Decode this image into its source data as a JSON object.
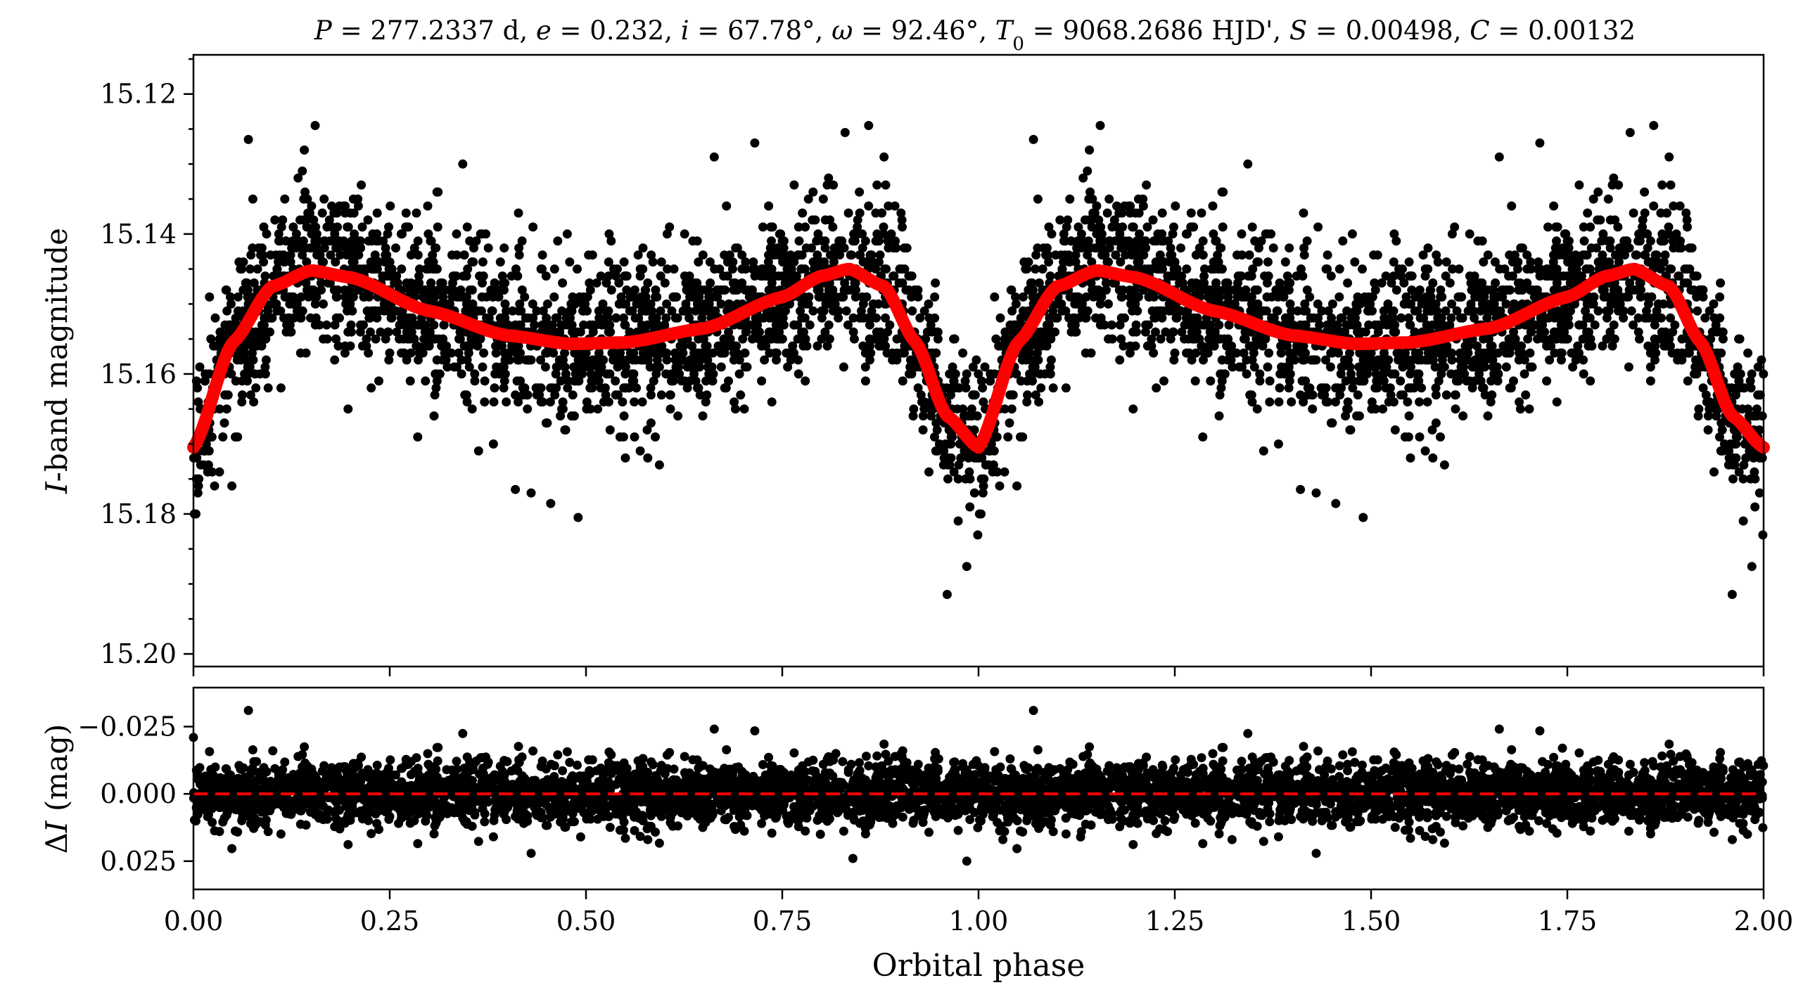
{
  "chart_data": [
    {
      "type": "scatter",
      "panel": "light-curve",
      "title": "P = 277.2337 d, e = 0.232, i = 67.78°, ω = 92.46°, T0 = 9068.2686 HJD', S = 0.00498, C = 0.00132",
      "title_parts": {
        "P_sym": "P",
        "P_val": " = 277.2337 d, ",
        "e_sym": "e",
        "e_val": " = 0.232, ",
        "i_sym": "i",
        "i_val": " = 67.78°, ",
        "w_sym": "ω",
        "w_val": " = 92.46°, ",
        "T_sym": "T",
        "T_sub": "0",
        "T_val": " = 9068.2686 HJD', ",
        "S_sym": "S",
        "S_val": " = 0.00498, ",
        "C_sym": "C",
        "C_val": " = 0.00132"
      },
      "xlabel": "Orbital phase",
      "ylabel_italic": "I",
      "ylabel_rest": "-band magnitude",
      "xlim": [
        0.0,
        2.0
      ],
      "ylim": [
        15.2018,
        15.1144
      ],
      "y_inverted": true,
      "yticks": [
        15.12,
        15.14,
        15.16,
        15.18,
        15.2
      ],
      "ytick_labels": [
        "15.12",
        "15.14",
        "15.16",
        "15.18",
        "15.20"
      ],
      "model_curve": {
        "color": "#ff0000",
        "phase": [
          0.0,
          0.05,
          0.1,
          0.15,
          0.2,
          0.3,
          0.4,
          0.48,
          0.55,
          0.65,
          0.75,
          0.8,
          0.835,
          0.88,
          0.92,
          0.96,
          1.0
        ],
        "magnitude": [
          15.1705,
          15.1555,
          15.1475,
          15.1452,
          15.1462,
          15.151,
          15.1545,
          15.1557,
          15.1555,
          15.1535,
          15.149,
          15.146,
          15.145,
          15.1475,
          15.1555,
          15.166,
          15.1705
        ]
      },
      "observations": {
        "color": "#000000",
        "note": "dense photometric points scattered around the model with ~0.006 mag rms; plotted over two cycles",
        "sample_outliers_phase": [
          0.155,
          0.07,
          0.86,
          0.83,
          0.96,
          0.985,
          0.49,
          0.41,
          0.455,
          1.155,
          1.07,
          1.86,
          1.83,
          1.96,
          1.985,
          1.49,
          1.41,
          1.455
        ],
        "sample_outliers_mag": [
          15.1245,
          15.1265,
          15.1245,
          15.1255,
          15.1915,
          15.1875,
          15.1805,
          15.1765,
          15.1785,
          15.1245,
          15.1265,
          15.1245,
          15.1255,
          15.1915,
          15.1875,
          15.1805,
          15.1765,
          15.1785
        ]
      }
    },
    {
      "type": "scatter",
      "panel": "residuals",
      "xlabel": "Orbital phase",
      "ylabel_delta": "Δ",
      "ylabel_italic": "I",
      "ylabel_rest": " (mag)",
      "xlim": [
        0.0,
        2.0
      ],
      "xticks": [
        0.0,
        0.25,
        0.5,
        0.75,
        1.0,
        1.25,
        1.5,
        1.75,
        2.0
      ],
      "xtick_labels": [
        "0.00",
        "0.25",
        "0.50",
        "0.75",
        "1.00",
        "1.25",
        "1.50",
        "1.75",
        "2.00"
      ],
      "ylim": [
        0.0355,
        -0.0395
      ],
      "y_inverted": true,
      "yticks": [
        -0.025,
        0.0,
        0.025
      ],
      "ytick_labels": [
        "−0.025",
        "0.000",
        "0.025"
      ],
      "zero_line": {
        "value": 0.0,
        "color": "#ff0000",
        "style": "dashed"
      },
      "residual_rms": 0.006,
      "sample_outliers_phase": [
        0.07,
        1.07,
        0.0,
        0.985,
        0.84
      ],
      "sample_outliers_res": [
        -0.031,
        -0.031,
        -0.021,
        0.025,
        0.024
      ]
    }
  ]
}
